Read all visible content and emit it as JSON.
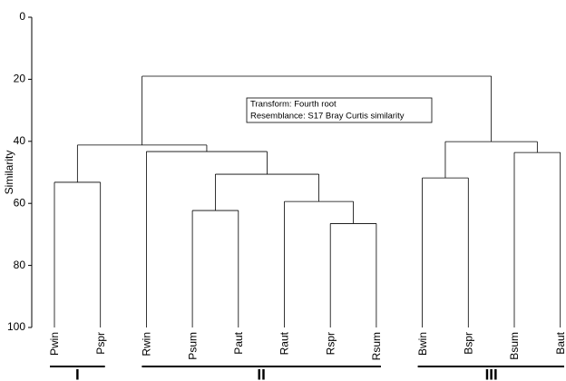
{
  "chart_data": {
    "type": "dendrogram",
    "y_label": "Similarity",
    "ylim": [
      0,
      100
    ],
    "yticks": [
      0,
      20,
      40,
      60,
      80,
      100
    ],
    "inverted": true,
    "color": "#000000",
    "annotation": [
      "Transform: Fourth root",
      "Resemblance: S17 Bray Curtis similarity"
    ],
    "tree": {
      "height": 19,
      "children": [
        {
          "height": 41.2,
          "children": [
            {
              "height": 53.2,
              "group": "I",
              "children": [
                {
                  "label": "Pwin"
                },
                {
                  "label": "Pspr"
                }
              ]
            },
            {
              "height": 43.3,
              "group": "II",
              "children": [
                {
                  "label": "Rwin"
                },
                {
                  "height": 50.6,
                  "children": [
                    {
                      "height": 62.3,
                      "children": [
                        {
                          "label": "Psum"
                        },
                        {
                          "label": "Paut"
                        }
                      ]
                    },
                    {
                      "height": 59.4,
                      "children": [
                        {
                          "label": "Raut"
                        },
                        {
                          "height": 66.5,
                          "children": [
                            {
                              "label": "Rspr"
                            },
                            {
                              "label": "Rsum"
                            }
                          ]
                        }
                      ]
                    }
                  ]
                }
              ]
            }
          ]
        },
        {
          "height": 40.1,
          "group": "III",
          "children": [
            {
              "height": 51.8,
              "children": [
                {
                  "label": "Bwin"
                },
                {
                  "label": "Bspr"
                }
              ]
            },
            {
              "height": 43.6,
              "children": [
                {
                  "label": "Bsum"
                },
                {
                  "label": "Baut"
                }
              ]
            }
          ]
        }
      ]
    }
  }
}
